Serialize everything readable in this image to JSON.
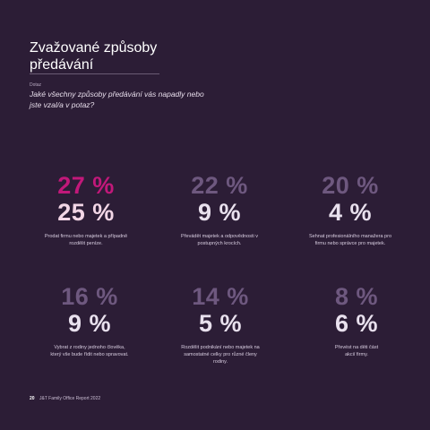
{
  "header": {
    "title": "Zvažované způsoby\npředávání",
    "question_label": "Dotaz",
    "question_text": "Jaké všechny způsoby předávání vás napadly nebo jste vzal/a v potaz?"
  },
  "cards": [
    {
      "value_1": "27 %",
      "value_2": "25 %",
      "description": "Prodat firmu nebo majetek a případně rozdělit peníze.",
      "color_1": "#c2187a",
      "color_2": "#f2d6e6"
    },
    {
      "value_1": "22 %",
      "value_2": "9 %",
      "description": "Převádět majetek a odpovědnosti v postupných krocích.",
      "color_1": "#6e587f",
      "color_2": "#e9e1ee"
    },
    {
      "value_1": "20 %",
      "value_2": "4 %",
      "description": "Sehnat profesionálního manažera pro firmu nebo správce pro majetek.",
      "color_1": "#6e587f",
      "color_2": "#e9e1ee"
    },
    {
      "value_1": "16 %",
      "value_2": "9 %",
      "description": "Vybrat z rodiny jednoho člověka, který vše bude řídit nebo spravovat.",
      "color_1": "#6e587f",
      "color_2": "#e9e1ee"
    },
    {
      "value_1": "14 %",
      "value_2": "5 %",
      "description": "Rozdělit podnikání nebo majetek na samostatné celky pro různé členy rodiny.",
      "color_1": "#6e587f",
      "color_2": "#e9e1ee"
    },
    {
      "value_1": "8 %",
      "value_2": "6 %",
      "description": "Převést na děti část akcií firmy.",
      "color_1": "#6e587f",
      "color_2": "#e9e1ee"
    }
  ],
  "footer": {
    "page_number": "20",
    "report_name": "J&T Family Office Report 2022"
  }
}
